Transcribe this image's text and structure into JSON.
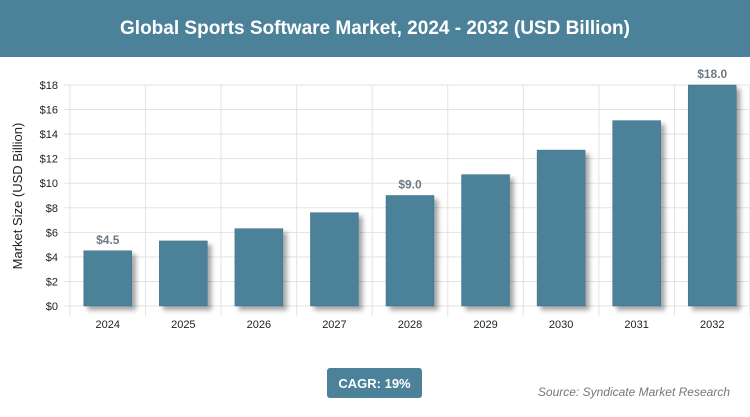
{
  "header": {
    "title": "Global Sports Software Market, 2024 - 2032 (USD Billion)"
  },
  "chart_data": {
    "type": "bar",
    "title": "Global Sports Software Market, 2024 - 2032 (USD Billion)",
    "ylabel": "Market Size (USD Billion)",
    "xlabel": "",
    "categories": [
      "2024",
      "2025",
      "2026",
      "2027",
      "2028",
      "2029",
      "2030",
      "2031",
      "2032"
    ],
    "values": [
      4.5,
      5.3,
      6.3,
      7.6,
      9.0,
      10.7,
      12.7,
      15.1,
      18.0
    ],
    "data_labels": {
      "0": "$4.5",
      "4": "$9.0",
      "8": "$18.0"
    },
    "ylim": [
      0,
      18
    ],
    "yticks": [
      "$0",
      "$2",
      "$4",
      "$6",
      "$8",
      "$10",
      "$12",
      "$14",
      "$16",
      "$18"
    ],
    "grid": true,
    "bar_color": "#4b8199"
  },
  "footer": {
    "cagr": "CAGR: 19%",
    "source": "Source: Syndicate Market Research"
  }
}
